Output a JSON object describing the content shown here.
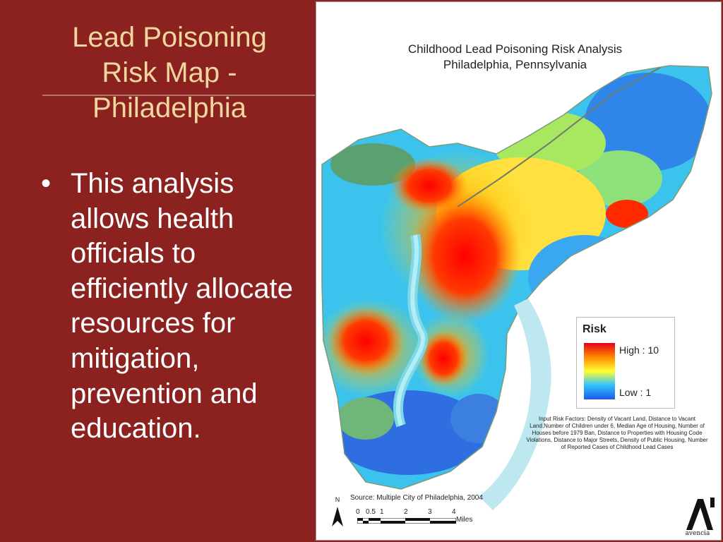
{
  "slide": {
    "title": "Lead Poisoning Risk Map - Philadelphia",
    "bullet_symbol": "•",
    "bullet": "This analysis allows health officials to efficiently allocate resources for mitigation, prevention and education."
  },
  "map": {
    "title_line1": "Childhood Lead Poisoning Risk Analysis",
    "title_line2": "Philadelphia, Pennsylvania",
    "legend": {
      "title": "Risk",
      "high": "High : 10",
      "low": "Low : 1",
      "colors": [
        "#e3001b",
        "#ff8a00",
        "#ffff30",
        "#30c0ff",
        "#1e5ce6"
      ]
    },
    "input_factors": "Input Risk Factors: Density of Vacant Land, Distance to Vacant Land,Number of Children under 6, Median Age of Housing, Number of Houses before 1979 Ban, Distance to Properties with Housing Code Violations, Distance to Major Streets, Density of Public Housing, Number of Reported Cases of Childhood Lead Cases",
    "source": "Source: Multiple City of Philadelphia, 2004",
    "north_label": "N",
    "scale_ticks": [
      "0",
      "0.5",
      "1",
      "2",
      "3",
      "4"
    ],
    "scale_unit": "Miles",
    "logo_text": "avencia"
  }
}
